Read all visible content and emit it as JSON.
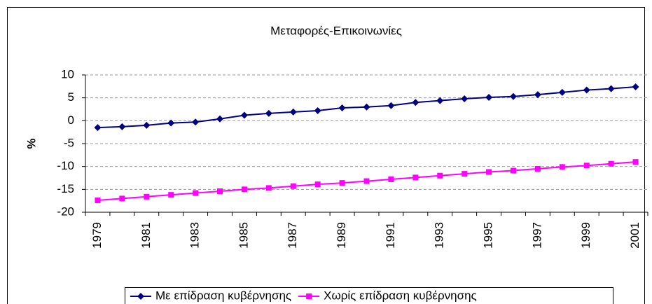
{
  "chart_data": {
    "type": "line",
    "title": "Μεταφορές-Επικοινωνίες",
    "y_label": "%",
    "categories": [
      "1979",
      null,
      "1981",
      null,
      "1983",
      null,
      "1985",
      null,
      "1987",
      null,
      "1989",
      null,
      "1991",
      null,
      "1993",
      null,
      "1995",
      null,
      "1997",
      null,
      "1999",
      null,
      "2001"
    ],
    "series": [
      {
        "name": "Με επίδραση κυβέρνησης",
        "color": "#000080",
        "marker": "diamond",
        "values": [
          -1.5,
          -1.3,
          -1.0,
          -0.5,
          -0.3,
          0.4,
          1.2,
          1.6,
          1.9,
          2.2,
          2.8,
          3.0,
          3.3,
          4.0,
          4.4,
          4.8,
          5.1,
          5.3,
          5.7,
          6.2,
          6.7,
          7.0,
          7.4
        ]
      },
      {
        "name": "Χωρίς επίδραση κυβέρνησης",
        "color": "#ff00ff",
        "marker": "square",
        "values": [
          -17.4,
          -17.0,
          -16.6,
          -16.2,
          -15.8,
          -15.4,
          -15.0,
          -14.7,
          -14.3,
          -13.9,
          -13.6,
          -13.2,
          -12.8,
          -12.4,
          -12.0,
          -11.6,
          -11.2,
          -10.9,
          -10.5,
          -10.1,
          -9.8,
          -9.4,
          -9.0
        ]
      }
    ],
    "ylim": [
      -20,
      10
    ],
    "yticks": [
      -20,
      -15,
      -10,
      -5,
      0,
      5,
      10
    ],
    "grid": true,
    "legend": "bottom"
  }
}
